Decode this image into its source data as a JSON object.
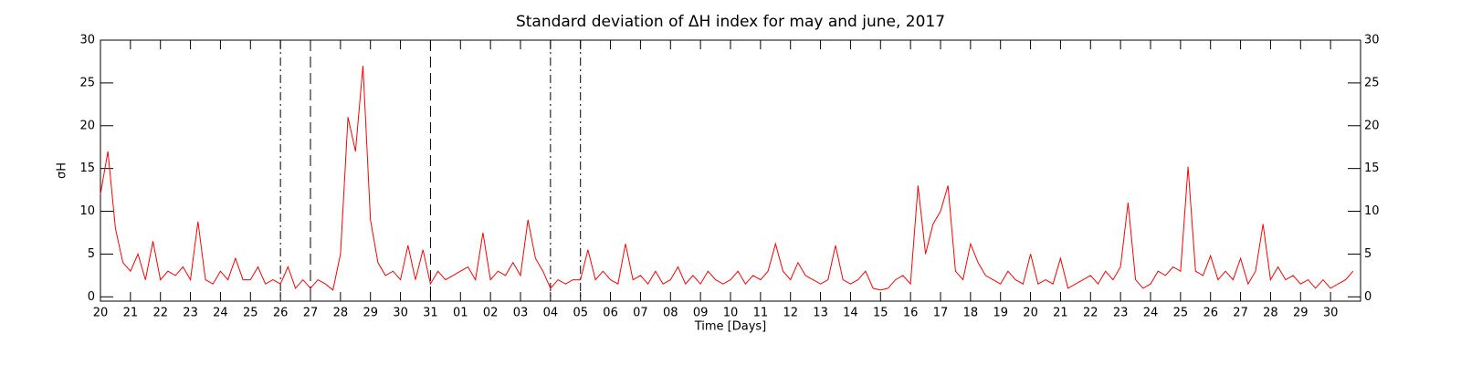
{
  "chart_data": {
    "type": "line",
    "title": "Standard deviation of ΔH index for may and june, 2017",
    "xlabel": "Time [Days]",
    "ylabel": "σH",
    "xlim": [
      0,
      42
    ],
    "ylim": [
      -0.5,
      30
    ],
    "xticks": [
      {
        "value": 0,
        "label": "20"
      },
      {
        "value": 1,
        "label": "21"
      },
      {
        "value": 2,
        "label": "22"
      },
      {
        "value": 3,
        "label": "23"
      },
      {
        "value": 4,
        "label": "24"
      },
      {
        "value": 5,
        "label": "25"
      },
      {
        "value": 6,
        "label": "26"
      },
      {
        "value": 7,
        "label": "27"
      },
      {
        "value": 8,
        "label": "28"
      },
      {
        "value": 9,
        "label": "29"
      },
      {
        "value": 10,
        "label": "30"
      },
      {
        "value": 11,
        "label": "31"
      },
      {
        "value": 12,
        "label": "01"
      },
      {
        "value": 13,
        "label": "02"
      },
      {
        "value": 14,
        "label": "03"
      },
      {
        "value": 15,
        "label": "04"
      },
      {
        "value": 16,
        "label": "05"
      },
      {
        "value": 17,
        "label": "06"
      },
      {
        "value": 18,
        "label": "07"
      },
      {
        "value": 19,
        "label": "08"
      },
      {
        "value": 20,
        "label": "09"
      },
      {
        "value": 21,
        "label": "10"
      },
      {
        "value": 22,
        "label": "11"
      },
      {
        "value": 23,
        "label": "12"
      },
      {
        "value": 24,
        "label": "13"
      },
      {
        "value": 25,
        "label": "14"
      },
      {
        "value": 26,
        "label": "15"
      },
      {
        "value": 27,
        "label": "16"
      },
      {
        "value": 28,
        "label": "17"
      },
      {
        "value": 29,
        "label": "18"
      },
      {
        "value": 30,
        "label": "19"
      },
      {
        "value": 31,
        "label": "20"
      },
      {
        "value": 32,
        "label": "21"
      },
      {
        "value": 33,
        "label": "22"
      },
      {
        "value": 34,
        "label": "23"
      },
      {
        "value": 35,
        "label": "24"
      },
      {
        "value": 36,
        "label": "25"
      },
      {
        "value": 37,
        "label": "26"
      },
      {
        "value": 38,
        "label": "27"
      },
      {
        "value": 39,
        "label": "28"
      },
      {
        "value": 40,
        "label": "29"
      },
      {
        "value": 41,
        "label": "30"
      }
    ],
    "yticks": [
      0,
      5,
      10,
      15,
      20,
      25,
      30
    ],
    "vlines": [
      {
        "x": 6,
        "style": "dashdot"
      },
      {
        "x": 7,
        "style": "dashed"
      },
      {
        "x": 11,
        "style": "dashed"
      },
      {
        "x": 15,
        "style": "dashdot"
      },
      {
        "x": 16,
        "style": "dashdot"
      }
    ],
    "series": [
      {
        "color": "#ff0000",
        "x": [
          0,
          0.25,
          0.5,
          0.75,
          1,
          1.25,
          1.5,
          1.75,
          2,
          2.25,
          2.5,
          2.75,
          3,
          3.25,
          3.5,
          3.75,
          4,
          4.25,
          4.5,
          4.75,
          5,
          5.25,
          5.5,
          5.75,
          6,
          6.25,
          6.5,
          6.75,
          7,
          7.25,
          7.5,
          7.75,
          8,
          8.25,
          8.5,
          8.75,
          9,
          9.25,
          9.5,
          9.75,
          10,
          10.25,
          10.5,
          10.75,
          11,
          11.25,
          11.5,
          11.75,
          12,
          12.25,
          12.5,
          12.75,
          13,
          13.25,
          13.5,
          13.75,
          14,
          14.25,
          14.5,
          14.75,
          15,
          15.25,
          15.5,
          15.75,
          16,
          16.25,
          16.5,
          16.75,
          17,
          17.25,
          17.5,
          17.75,
          18,
          18.25,
          18.5,
          18.75,
          19,
          19.25,
          19.5,
          19.75,
          20,
          20.25,
          20.5,
          20.75,
          21,
          21.25,
          21.5,
          21.75,
          22,
          22.25,
          22.5,
          22.75,
          23,
          23.25,
          23.5,
          23.75,
          24,
          24.25,
          24.5,
          24.75,
          25,
          25.25,
          25.5,
          25.75,
          26,
          26.25,
          26.5,
          26.75,
          27,
          27.25,
          27.5,
          27.75,
          28,
          28.25,
          28.5,
          28.75,
          29,
          29.25,
          29.5,
          29.75,
          30,
          30.25,
          30.5,
          30.75,
          31,
          31.25,
          31.5,
          31.75,
          32,
          32.25,
          32.5,
          32.75,
          33,
          33.25,
          33.5,
          33.75,
          34,
          34.25,
          34.5,
          34.75,
          35,
          35.25,
          35.5,
          35.75,
          36,
          36.25,
          36.5,
          36.75,
          37,
          37.25,
          37.5,
          37.75,
          38,
          38.25,
          38.5,
          38.75,
          39,
          39.25,
          39.5,
          39.75,
          40,
          40.25,
          40.5,
          40.75,
          41,
          41.25,
          41.5,
          41.75
        ],
        "values": [
          12,
          17,
          8,
          4,
          3,
          5,
          2,
          6.5,
          2,
          3,
          2.5,
          3.5,
          2,
          8.8,
          2,
          1.5,
          3,
          2,
          4.5,
          2,
          2,
          3.5,
          1.5,
          2,
          1.5,
          3.5,
          1,
          2,
          1,
          2,
          1.5,
          0.8,
          5,
          21,
          17,
          27,
          9,
          4,
          2.5,
          3,
          2,
          6,
          2,
          5.5,
          1.5,
          3,
          2,
          2.5,
          3,
          3.5,
          2,
          7.5,
          2,
          3,
          2.5,
          4,
          2.5,
          9,
          4.5,
          3,
          1,
          2,
          1.5,
          2,
          2,
          5.5,
          2,
          3,
          2,
          1.5,
          6.2,
          2,
          2.5,
          1.5,
          3,
          1.5,
          2,
          3.5,
          1.5,
          2.5,
          1.5,
          3,
          2,
          1.5,
          2,
          3,
          1.5,
          2.5,
          2,
          3,
          6.2,
          3,
          2,
          4,
          2.5,
          2,
          1.5,
          2,
          6,
          2,
          1.5,
          2,
          3,
          1,
          0.8,
          1,
          2,
          2.5,
          1.5,
          13,
          5,
          8.5,
          10,
          13,
          3,
          2,
          6.2,
          4,
          2.5,
          2,
          1.5,
          3,
          2,
          1.5,
          5,
          1.5,
          2,
          1.5,
          4.5,
          1,
          1.5,
          2,
          2.5,
          1.5,
          3,
          2,
          3.5,
          11,
          2,
          1,
          1.5,
          3,
          2.5,
          3.5,
          3,
          15.2,
          3,
          2.5,
          4.8,
          2,
          3,
          2,
          4.5,
          1.5,
          3,
          8.5,
          2,
          3.5,
          2,
          2.5,
          1.5,
          2,
          1,
          2,
          1,
          1.5,
          2,
          3
        ]
      }
    ]
  }
}
